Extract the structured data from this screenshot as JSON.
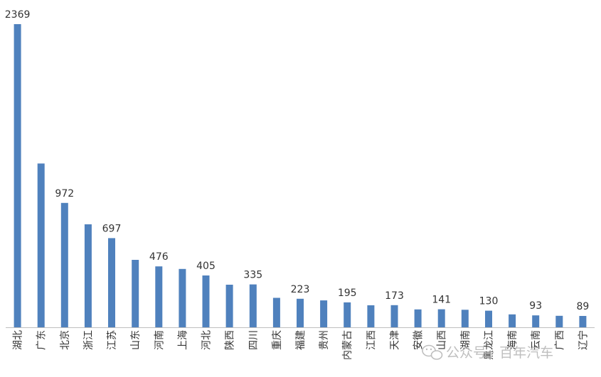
{
  "chart_data": {
    "type": "bar",
    "categories": [
      "湖北",
      "广东",
      "北京",
      "浙江",
      "江苏",
      "山东",
      "河南",
      "上海",
      "河北",
      "陕西",
      "四川",
      "重庆",
      "福建",
      "贵州",
      "内蒙古",
      "江西",
      "天津",
      "安徽",
      "山西",
      "湖南",
      "黑龙江",
      "海南",
      "云南",
      "广西",
      "辽宁"
    ],
    "values": [
      2369,
      1280,
      972,
      805,
      697,
      527,
      476,
      456,
      405,
      333,
      335,
      230,
      223,
      210,
      195,
      172,
      173,
      140,
      141,
      137,
      130,
      101,
      93,
      90,
      89
    ],
    "labeled_indices": [
      0,
      2,
      4,
      6,
      8,
      10,
      12,
      14,
      16,
      18,
      20,
      22,
      24
    ],
    "ylim": [
      0,
      2369
    ],
    "grid": false,
    "bar_color": "#4f81bd",
    "axis_color": "#bfbfbf",
    "label_color": "#333333"
  },
  "watermark": {
    "text": "公众号 · 百年汽车",
    "icon": "wechat-icon"
  }
}
